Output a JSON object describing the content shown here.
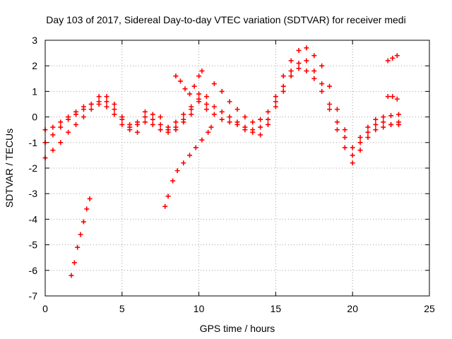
{
  "chart_data": {
    "type": "scatter",
    "title": "Day 103 of 2017, Sidereal Day-to-day VTEC variation (SDTVAR) for receiver medi",
    "xlabel": "GPS time / hours",
    "ylabel": "SDTVAR / TECUs",
    "xlim": [
      0,
      25
    ],
    "ylim": [
      -7,
      3
    ],
    "x_ticks": [
      "0",
      "5",
      "10",
      "15",
      "20",
      "25"
    ],
    "y_ticks": [
      "-7",
      "-6",
      "-5",
      "-4",
      "-3",
      "-2",
      "-1",
      "0",
      "1",
      "2",
      "3"
    ],
    "grid": true,
    "marker": "+",
    "color": "#ff0000",
    "series": [
      {
        "x": [
          0.0,
          0.5,
          1.0,
          1.5,
          2.0,
          2.5,
          3.0,
          3.5,
          4.0,
          4.5,
          5.0,
          5.5,
          6.0,
          6.5,
          7.0,
          7.5,
          8.0,
          8.5,
          9.0,
          9.5,
          10.0,
          10.5,
          11.0,
          11.5,
          12.0,
          12.5,
          13.0,
          13.5,
          14.0,
          14.5,
          15.0,
          15.5,
          16.0,
          16.5,
          17.0,
          17.5,
          18.0,
          18.5,
          19.0,
          19.5,
          20.0,
          20.5,
          21.0,
          21.5,
          22.0,
          22.5,
          23.0
        ],
        "y": [
          -0.5,
          -0.4,
          -0.2,
          0.0,
          0.2,
          0.4,
          0.5,
          0.6,
          0.8,
          0.5,
          0.0,
          -0.3,
          -0.2,
          0.2,
          0.1,
          0.0,
          -0.4,
          -0.2,
          0.1,
          0.4,
          0.7,
          0.8,
          1.3,
          1.0,
          0.6,
          0.3,
          0.0,
          -0.2,
          -0.1,
          0.2,
          0.8,
          1.6,
          2.2,
          2.6,
          2.7,
          2.4,
          2.0,
          1.2,
          0.3,
          -0.5,
          -1.2,
          -0.8,
          -0.4,
          -0.1,
          0.0,
          0.05,
          0.1
        ]
      },
      {
        "x": [
          0.0,
          0.5,
          1.0,
          1.5,
          2.0,
          2.5,
          3.0,
          3.5,
          4.0,
          4.5,
          5.0,
          5.5,
          6.0,
          6.5,
          7.0,
          7.5,
          8.0,
          8.5,
          9.0,
          9.5,
          10.0,
          10.5,
          11.0,
          11.5,
          12.0,
          12.5,
          13.0,
          13.5,
          14.0,
          14.5,
          15.0,
          15.5,
          16.0,
          16.5,
          17.0,
          17.5,
          18.0,
          18.5,
          19.0,
          19.5,
          20.0,
          20.5,
          21.0,
          21.5,
          22.0,
          22.5,
          23.0
        ],
        "y": [
          -1.0,
          -0.7,
          -0.4,
          -0.1,
          0.1,
          0.3,
          0.5,
          0.8,
          0.4,
          0.1,
          -0.3,
          -0.5,
          -0.3,
          0.0,
          -0.1,
          -0.3,
          -0.5,
          -0.4,
          -0.1,
          0.3,
          0.6,
          0.5,
          0.4,
          0.2,
          0.0,
          -0.2,
          -0.4,
          -0.5,
          -0.4,
          -0.1,
          0.6,
          1.2,
          1.8,
          2.1,
          2.2,
          1.8,
          1.3,
          0.5,
          -0.2,
          -0.8,
          -1.5,
          -1.0,
          -0.6,
          -0.3,
          -0.2,
          -0.3,
          -0.3
        ]
      },
      {
        "x": [
          0.0,
          0.5,
          1.0,
          1.5,
          2.0,
          2.5,
          3.0,
          3.5,
          4.0,
          4.5,
          5.0,
          5.5,
          6.0,
          6.5,
          7.0,
          7.5,
          8.0,
          8.5,
          9.0,
          9.5,
          10.0,
          10.5,
          11.0,
          11.5,
          12.0,
          12.5,
          13.0,
          13.5,
          14.0,
          14.5,
          15.0,
          15.5,
          16.0,
          16.5,
          17.0,
          17.5,
          18.0,
          18.5,
          19.0,
          19.5,
          20.0,
          20.5,
          21.0,
          21.5,
          22.0,
          22.5,
          23.0
        ],
        "y": [
          -1.6,
          -1.3,
          -1.0,
          -0.6,
          -0.3,
          0.0,
          0.3,
          0.5,
          0.6,
          0.3,
          -0.1,
          -0.4,
          -0.6,
          -0.2,
          -0.3,
          -0.5,
          -0.6,
          -0.5,
          -0.2,
          0.1,
          0.9,
          0.3,
          0.1,
          -0.1,
          -0.2,
          -0.3,
          -0.5,
          -0.6,
          -0.7,
          -0.3,
          0.4,
          1.0,
          1.6,
          1.9,
          1.8,
          1.5,
          1.0,
          0.3,
          -0.5,
          -1.2,
          -1.8,
          -1.3,
          -0.8,
          -0.5,
          -0.4,
          -0.3,
          -0.2
        ]
      },
      {
        "x": [
          1.7,
          1.9,
          2.1,
          2.3,
          2.5,
          2.7,
          2.9
        ],
        "y": [
          -6.2,
          -5.7,
          -5.1,
          -4.6,
          -4.1,
          -3.6,
          -3.2
        ]
      },
      {
        "x": [
          7.8,
          8.0,
          8.3,
          8.6,
          9.0,
          9.4,
          9.8,
          10.2,
          10.6,
          10.8
        ],
        "y": [
          -3.5,
          -3.1,
          -2.5,
          -2.1,
          -1.8,
          -1.5,
          -1.2,
          -0.9,
          -0.6,
          -0.4
        ]
      },
      {
        "x": [
          8.5,
          8.8,
          9.1,
          9.4,
          9.7,
          10.0,
          10.2
        ],
        "y": [
          1.6,
          1.4,
          1.1,
          0.9,
          1.2,
          1.6,
          1.8
        ]
      },
      {
        "x": [
          22.3,
          22.6,
          22.9
        ],
        "y": [
          2.2,
          2.3,
          2.4
        ]
      },
      {
        "x": [
          22.3,
          22.6,
          22.9
        ],
        "y": [
          0.8,
          0.8,
          0.7
        ]
      }
    ]
  }
}
